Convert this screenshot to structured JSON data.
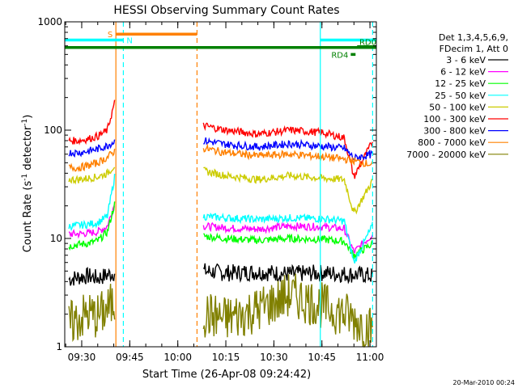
{
  "chart_data": {
    "type": "line",
    "title": "HESSI Observing Summary Count Rates",
    "xlabel": "Start Time (26-Apr-08 09:24:42)",
    "ylabel_main": "Count Rate (s",
    "ylabel_sup1": "-1",
    "ylabel_mid": " detector",
    "ylabel_sup2": "-1",
    "ylabel_end": ")",
    "y_scale": "log",
    "ylim": [
      1,
      1000
    ],
    "xlim": [
      "09:24:42",
      "11:02:00"
    ],
    "x_ticks": [
      "09:30",
      "09:45",
      "10:00",
      "10:15",
      "10:30",
      "10:45",
      "11:00"
    ],
    "y_ticks": [
      "1",
      "10",
      "100",
      "1000"
    ],
    "legend": {
      "header": [
        "Det 1,3,4,5,6,9,",
        "FDecim 1, Att 0"
      ],
      "placement": "right"
    },
    "series": [
      {
        "name": "3 - 6 keV",
        "color": "#000000",
        "segments": [
          {
            "x": [
              "09:26",
              "09:29",
              "09:32",
              "09:35",
              "09:38",
              "09:40:30"
            ],
            "y": [
              4.2,
              4.4,
              4.5,
              4.3,
              4.6,
              4.9
            ]
          },
          {
            "x": [
              "10:08",
              "10:15",
              "10:25",
              "10:35",
              "10:45",
              "10:52",
              "10:58",
              "11:01"
            ],
            "y": [
              5.0,
              4.8,
              4.9,
              4.7,
              4.8,
              4.7,
              4.6,
              4.5
            ]
          }
        ]
      },
      {
        "name": "6 - 12 keV",
        "color": "#ff00ff",
        "segments": [
          {
            "x": [
              "09:26",
              "09:29",
              "09:32",
              "09:35",
              "09:38",
              "09:40:30"
            ],
            "y": [
              11.0,
              11.0,
              11.2,
              11.5,
              13,
              22
            ]
          },
          {
            "x": [
              "10:08",
              "10:15",
              "10:25",
              "10:35",
              "10:45",
              "10:52",
              "10:55",
              "11:01"
            ],
            "y": [
              13,
              12.5,
              12.2,
              13,
              12.8,
              12.3,
              7.5,
              11
            ]
          }
        ]
      },
      {
        "name": "12 - 25 keV",
        "color": "#00ff00",
        "segments": [
          {
            "x": [
              "09:26",
              "09:29",
              "09:32",
              "09:35",
              "09:38",
              "09:40:30"
            ],
            "y": [
              8.5,
              8.8,
              9.0,
              9.5,
              11.5,
              22
            ]
          },
          {
            "x": [
              "10:08",
              "10:15",
              "10:25",
              "10:35",
              "10:45",
              "10:52",
              "10:55",
              "11:01"
            ],
            "y": [
              10.5,
              10,
              9.6,
              10,
              9.8,
              9.4,
              7,
              9
            ]
          }
        ]
      },
      {
        "name": "25 - 50 keV",
        "color": "#00ffff",
        "segments": [
          {
            "x": [
              "09:26",
              "09:29",
              "09:32",
              "09:35",
              "09:38",
              "09:40:30"
            ],
            "y": [
              13,
              13.2,
              13.5,
              14,
              16,
              40
            ]
          },
          {
            "x": [
              "10:08",
              "10:15",
              "10:25",
              "10:35",
              "10:45",
              "10:52",
              "10:55",
              "11:01"
            ],
            "y": [
              16,
              15.5,
              15,
              15.5,
              15.2,
              14.5,
              6,
              13.5
            ]
          }
        ]
      },
      {
        "name": "50 - 100 keV",
        "color": "#cccc00",
        "segments": [
          {
            "x": [
              "09:26",
              "09:29",
              "09:32",
              "09:35",
              "09:38",
              "09:40:30"
            ],
            "y": [
              35,
              35,
              36,
              37,
              40,
              48
            ]
          },
          {
            "x": [
              "10:08",
              "10:15",
              "10:25",
              "10:35",
              "10:45",
              "10:52",
              "10:55",
              "11:01"
            ],
            "y": [
              42,
              38,
              35,
              38,
              36,
              35,
              17,
              35
            ]
          }
        ]
      },
      {
        "name": "100 - 300 keV",
        "color": "#ff0000",
        "segments": [
          {
            "x": [
              "09:26",
              "09:29",
              "09:32",
              "09:35",
              "09:38",
              "09:40:30"
            ],
            "y": [
              80,
              80,
              83,
              88,
              100,
              190
            ]
          },
          {
            "x": [
              "10:08",
              "10:15",
              "10:25",
              "10:35",
              "10:45",
              "10:52",
              "10:55",
              "11:01"
            ],
            "y": [
              110,
              100,
              92,
              100,
              95,
              85,
              37,
              80
            ]
          }
        ]
      },
      {
        "name": "300 - 800 keV",
        "color": "#0000ff",
        "segments": [
          {
            "x": [
              "09:26",
              "09:29",
              "09:32",
              "09:35",
              "09:38",
              "09:40:30"
            ],
            "y": [
              62,
              62,
              64,
              67,
              72,
              80
            ]
          },
          {
            "x": [
              "10:08",
              "10:15",
              "10:25",
              "10:35",
              "10:45",
              "10:52",
              "10:55",
              "11:01"
            ],
            "y": [
              80,
              74,
              70,
              75,
              71,
              68,
              55,
              60
            ]
          }
        ]
      },
      {
        "name": "800 - 7000 keV",
        "color": "#ff8000",
        "segments": [
          {
            "x": [
              "09:26",
              "09:29",
              "09:32",
              "09:35",
              "09:38",
              "09:40:30"
            ],
            "y": [
              45,
              45,
              47,
              50,
              56,
              65
            ]
          },
          {
            "x": [
              "10:08",
              "10:15",
              "10:25",
              "10:35",
              "10:45",
              "10:52",
              "10:55",
              "11:01"
            ],
            "y": [
              68,
              62,
              58,
              60,
              57,
              54,
              52,
              48
            ]
          }
        ]
      },
      {
        "name": "7000 - 20000 keV",
        "color": "#808000",
        "segments": [
          {
            "x": [
              "09:26",
              "09:29",
              "09:32",
              "09:35",
              "09:38",
              "09:40:30"
            ],
            "y": [
              1.6,
              1.8,
              2.0,
              1.9,
              2.2,
              2.6
            ]
          },
          {
            "x": [
              "10:08",
              "10:15",
              "10:25",
              "10:35",
              "10:45",
              "10:52",
              "10:58",
              "11:01"
            ],
            "y": [
              2.0,
              1.8,
              2.2,
              3.0,
              2.4,
              2.0,
              1.6,
              1.4
            ]
          }
        ]
      }
    ],
    "markers": {
      "vlines_solid": [
        {
          "x": "09:40:40",
          "color": "#ff8000"
        },
        {
          "x": "10:44:30",
          "color": "#00ffff"
        }
      ],
      "vlines_dashed": [
        {
          "x": "09:43:00",
          "color": "#00ffff"
        },
        {
          "x": "10:06:00",
          "color": "#ff8000"
        },
        {
          "x": "11:00:50",
          "color": "#00ffff"
        }
      ],
      "intervals": [
        {
          "label": "S",
          "color": "#ff8000",
          "x0": "09:40:40",
          "x1": "10:06:00",
          "y": 770
        },
        {
          "label": "N",
          "color": "#00ffff",
          "x0": "09:24:42",
          "x1": "09:43:00",
          "y": 680
        },
        {
          "label": "",
          "color": "#00ffff",
          "x0": "10:44:30",
          "x1": "11:02:00",
          "y": 680
        },
        {
          "label": "",
          "color": "#008000",
          "x0": "09:24:42",
          "x1": "11:02:00",
          "y": 580
        },
        {
          "label": "RD4",
          "color": "#008000",
          "x0": "10:54:00",
          "x1": "10:55:30",
          "y": 500
        },
        {
          "label": "RD0",
          "color": "#008000",
          "x0": "10:56:00",
          "x1": "11:02:00",
          "y": 590
        }
      ]
    }
  },
  "footer_timestamp": "20-Mar-2010 00:24"
}
